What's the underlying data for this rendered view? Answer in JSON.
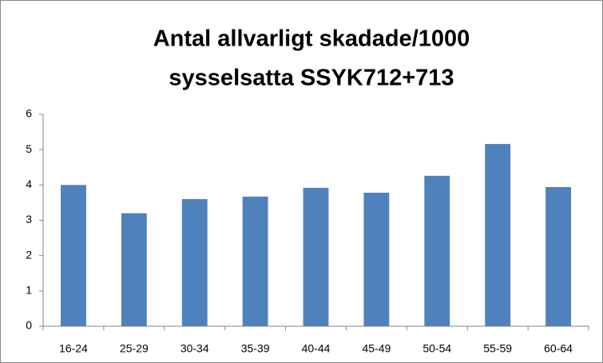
{
  "chart_data": {
    "type": "bar",
    "title": [
      "Antal allvarligt skadade/1000",
      "sysselsatta SSYK712+713"
    ],
    "categories": [
      "16-24",
      "25-29",
      "30-34",
      "35-39",
      "40-44",
      "45-49",
      "50-54",
      "55-59",
      "60-64"
    ],
    "values": [
      4.0,
      3.2,
      3.6,
      3.67,
      3.92,
      3.78,
      4.26,
      5.16,
      3.94
    ],
    "color": "#4f81bd",
    "ylim": [
      0,
      6
    ],
    "yticks": [
      0,
      1,
      2,
      3,
      4,
      5,
      6
    ],
    "grid": false
  }
}
